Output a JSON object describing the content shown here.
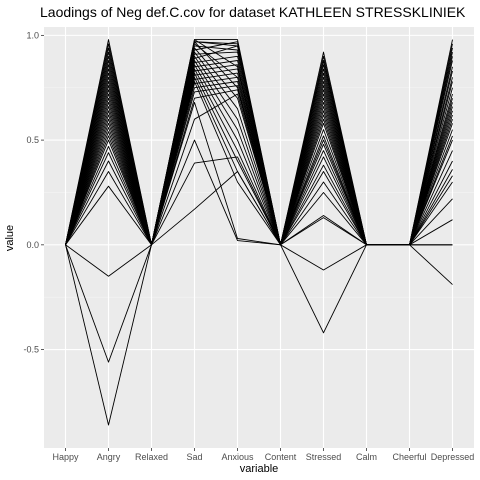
{
  "chart_data": {
    "type": "line",
    "title": "Laodings of Neg def.C.cov for dataset KATHLEEN STRESSKLINIEK",
    "xlabel": "variable",
    "ylabel": "value",
    "categories": [
      "Happy",
      "Angry",
      "Relaxed",
      "Sad",
      "Anxious",
      "Content",
      "Stressed",
      "Calm",
      "Cheerful",
      "Depressed"
    ],
    "ylim": [
      -0.97,
      1.04
    ],
    "yticks": [
      -0.5,
      0.0,
      0.5,
      1.0
    ],
    "ytick_labels": [
      "-0.5",
      "0.0",
      "0.5",
      "1.0"
    ],
    "grid": true,
    "legend": "none",
    "line_color": "#000000",
    "panel_background": "#ebebeb",
    "series": [
      {
        "values": [
          0,
          0.98,
          0,
          0.97,
          0.96,
          0,
          0.92,
          0,
          0,
          0.98
        ]
      },
      {
        "values": [
          0,
          0.96,
          0,
          0.95,
          0.93,
          0,
          0.9,
          0,
          0,
          0.96
        ]
      },
      {
        "values": [
          0,
          0.94,
          0,
          0.98,
          0.85,
          0,
          0.88,
          0,
          0,
          0.94
        ]
      },
      {
        "values": [
          0,
          0.92,
          0,
          0.93,
          0.97,
          0,
          0.86,
          0,
          0,
          0.92
        ]
      },
      {
        "values": [
          0,
          0.9,
          0,
          0.96,
          0.8,
          0,
          0.84,
          0,
          0,
          0.9
        ]
      },
      {
        "values": [
          0,
          0.88,
          0,
          0.91,
          0.92,
          0,
          0.82,
          0,
          0,
          0.88
        ]
      },
      {
        "values": [
          0,
          0.86,
          0,
          0.97,
          0.75,
          0,
          0.8,
          0,
          0,
          0.85
        ]
      },
      {
        "values": [
          0,
          0.84,
          0,
          0.89,
          0.95,
          0,
          0.78,
          0,
          0,
          0.83
        ]
      },
      {
        "values": [
          0,
          0.82,
          0,
          0.94,
          0.7,
          0,
          0.76,
          0,
          0,
          0.8
        ]
      },
      {
        "values": [
          0,
          0.8,
          0,
          0.87,
          0.9,
          0,
          0.74,
          0,
          0,
          0.78
        ]
      },
      {
        "values": [
          0,
          0.78,
          0,
          0.92,
          0.65,
          0,
          0.72,
          0,
          0,
          0.75
        ]
      },
      {
        "values": [
          0,
          0.76,
          0,
          0.85,
          0.88,
          0,
          0.7,
          0,
          0,
          0.72
        ]
      },
      {
        "values": [
          0,
          0.74,
          0,
          0.9,
          0.6,
          0,
          0.68,
          0,
          0,
          0.7
        ]
      },
      {
        "values": [
          0,
          0.72,
          0,
          0.83,
          0.86,
          0,
          0.66,
          0,
          0,
          0.68
        ]
      },
      {
        "values": [
          0,
          0.7,
          0,
          0.88,
          0.55,
          0,
          0.64,
          0,
          0,
          0.66
        ]
      },
      {
        "values": [
          0,
          0.68,
          0,
          0.81,
          0.84,
          0,
          0.62,
          0,
          0,
          0.64
        ]
      },
      {
        "values": [
          0,
          0.66,
          0,
          0.86,
          0.5,
          0,
          0.6,
          0,
          0,
          0.62
        ]
      },
      {
        "values": [
          0,
          0.64,
          0,
          0.79,
          0.82,
          0,
          0.58,
          0,
          0,
          0.6
        ]
      },
      {
        "values": [
          0,
          0.62,
          0,
          0.84,
          0.45,
          0,
          0.55,
          0,
          0,
          0.58
        ]
      },
      {
        "values": [
          0,
          0.6,
          0,
          0.77,
          0.8,
          0,
          0.52,
          0,
          0,
          0.55
        ]
      },
      {
        "values": [
          0,
          0.58,
          0,
          0.82,
          0.4,
          0,
          0.5,
          0,
          0,
          0.52
        ]
      },
      {
        "values": [
          0,
          0.56,
          0,
          0.75,
          0.78,
          0,
          0.48,
          0,
          0,
          0.5
        ]
      },
      {
        "values": [
          0,
          0.54,
          0,
          0.8,
          0.35,
          0,
          0.45,
          0,
          0,
          0.45
        ]
      },
      {
        "values": [
          0,
          0.52,
          0,
          0.73,
          0.76,
          0,
          0.42,
          0,
          0,
          0.4
        ]
      },
      {
        "values": [
          0,
          0.5,
          0,
          0.78,
          0.3,
          0,
          0.38,
          0,
          0,
          0.36
        ]
      },
      {
        "values": [
          0,
          0.47,
          0,
          0.7,
          0.74,
          0,
          0.35,
          0,
          0,
          0.33
        ]
      },
      {
        "values": [
          0,
          0.44,
          0,
          0.68,
          0.03,
          0,
          0.3,
          0,
          0,
          0.3
        ]
      },
      {
        "values": [
          0,
          0.4,
          0,
          0.6,
          0.72,
          0,
          0.25,
          0,
          0,
          0.22
        ]
      },
      {
        "values": [
          0,
          0.35,
          0,
          0.5,
          0.02,
          0,
          0.14,
          0,
          0,
          0.12
        ]
      },
      {
        "values": [
          0,
          0.28,
          0,
          0.39,
          0.42,
          0,
          0.13,
          0,
          0,
          0
        ]
      },
      {
        "values": [
          0,
          -0.15,
          0,
          0.98,
          0.98,
          0,
          -0.12,
          0,
          0,
          -0.19
        ]
      },
      {
        "values": [
          0,
          -0.56,
          0,
          0.97,
          0.95,
          0,
          -0.42,
          0,
          0,
          0
        ]
      },
      {
        "values": [
          0,
          -0.86,
          0,
          0.17,
          0.35,
          0,
          0.88,
          0,
          0,
          0
        ]
      }
    ]
  }
}
